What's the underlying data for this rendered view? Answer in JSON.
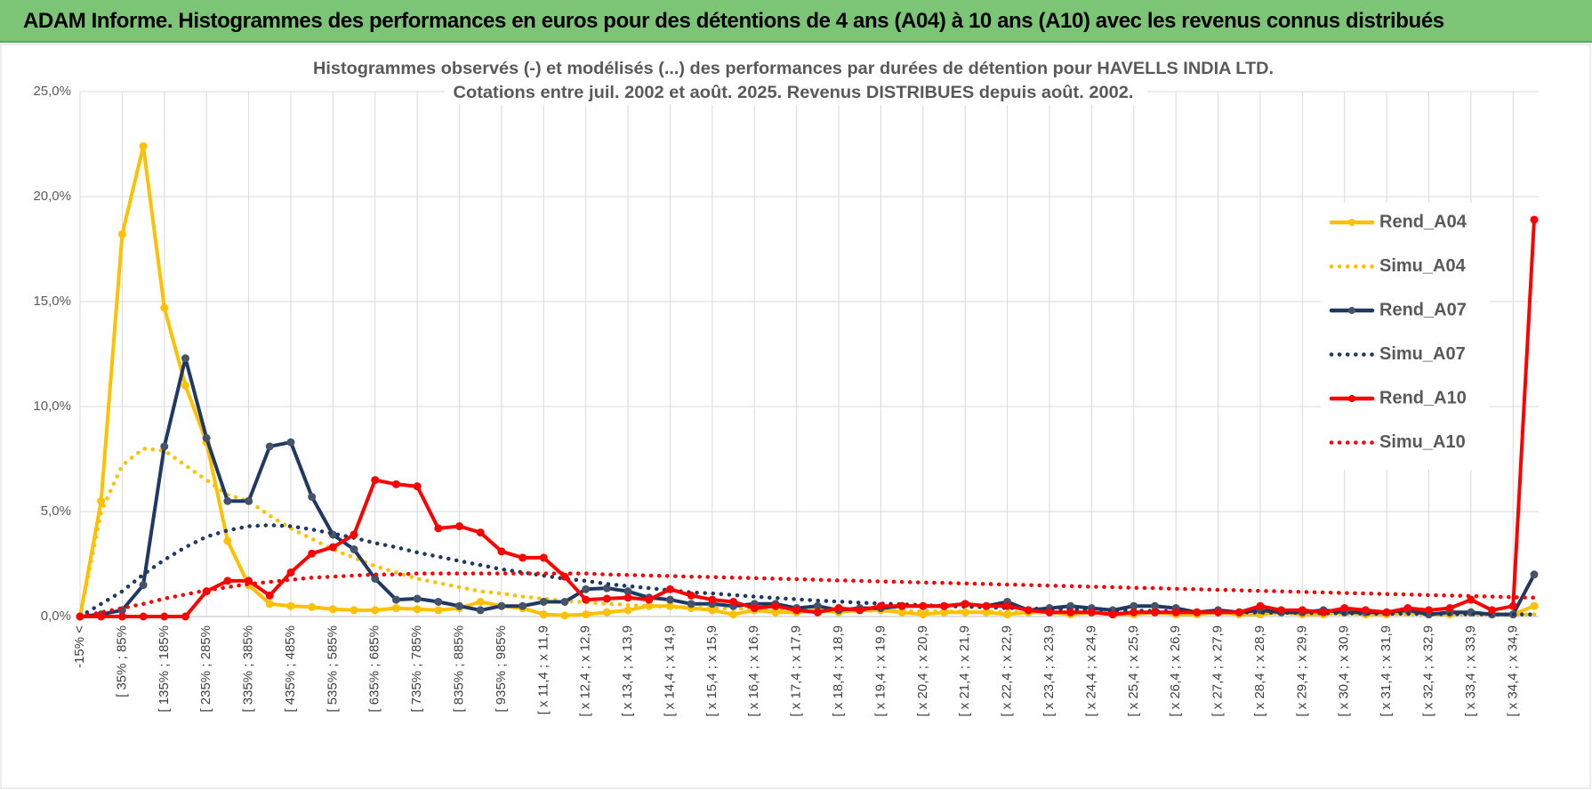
{
  "header": {
    "title": "ADAM Informe. Histogrammes des performances en euros pour des détentions de 4 ans (A04) à 10 ans (A10) avec les revenus connus distribués"
  },
  "chart_data": {
    "type": "line",
    "title": "Histogrammes observés (-) et modélisés (...) des performances par durées de détention pour HAVELLS INDIA LTD.",
    "subtitle": "Cotations entre juil. 2002 et août. 2025. Revenus DISTRIBUES depuis août. 2002.",
    "categories": [
      "-15% <",
      null,
      "[ 35% ; 85%",
      null,
      "[ 135% ; 185%",
      null,
      "[ 235% ; 285%",
      null,
      "[ 335% ; 385%",
      null,
      "[ 435% ; 485%",
      null,
      "[ 535% ; 585%",
      null,
      "[ 635% ; 685%",
      null,
      "[ 735% ; 785%",
      null,
      "[ 835% ; 885%",
      null,
      "[ 935% ; 985%",
      null,
      "[ x 11,4 ; x 11,9",
      null,
      "[ x 12,4 ; x 12,9",
      null,
      "[ x 13,4 ; x 13,9",
      null,
      "[ x 14,4 ; x 14,9",
      null,
      "[ x 15,4 ; x 15,9",
      null,
      "[ x 16,4 ; x 16,9",
      null,
      "[ x 17,4 ; x 17,9",
      null,
      "[ x 18,4 ; x 18,9",
      null,
      "[ x 19,4 ; x 19,9",
      null,
      "[ x 20,4 ; x 20,9",
      null,
      "[ x 21,4 ; x 21,9",
      null,
      "[ x 22,4 ; x 22,9",
      null,
      "[ x 23,4 ; x 23,9",
      null,
      "[ x 24,4 ; x 24,9",
      null,
      "[ x 25,4 ; x 25,9",
      null,
      "[ x 26,4 ; x 26,9",
      null,
      "[ x 27,4 ; x 27,9",
      null,
      "[ x 28,4 ; x 28,9",
      null,
      "[ x 29,4 ; x 29,9",
      null,
      "[ x 30,4 ; x 30,9",
      null,
      "[ x 31,4 ; x 31,9",
      null,
      "[ x 32,4 ; x 32,9",
      null,
      "[ x 33,4 ; x 33,9",
      null,
      "[ x 34,4 ; x 34,9",
      null
    ],
    "series": [
      {
        "name": "Rend_A04",
        "color": "#FFC000",
        "style": "solid",
        "markers": true,
        "marker_color": "#FFC000",
        "values": [
          0,
          5.5,
          18.2,
          22.4,
          14.7,
          11,
          8.3,
          3.6,
          1.5,
          0.6,
          0.5,
          0.45,
          0.35,
          0.3,
          0.3,
          0.4,
          0.35,
          0.3,
          0.4,
          0.7,
          0.5,
          0.4,
          0.1,
          0.05,
          0.1,
          0.2,
          0.3,
          0.5,
          0.5,
          0.4,
          0.3,
          0.1,
          0.3,
          0.2,
          0.2,
          0.3,
          0.2,
          0.3,
          0.3,
          0.2,
          0.1,
          0.2,
          0.2,
          0.2,
          0.1,
          0.2,
          0.2,
          0.1,
          0.2,
          0.1,
          0.1,
          0.2,
          0.1,
          0.1,
          0.2,
          0.1,
          0.1,
          0.2,
          0.1,
          0.1,
          0.2,
          0.1,
          0.1,
          0.2,
          0.1,
          0.1,
          0.2,
          0.1,
          0.1,
          0.5
        ]
      },
      {
        "name": "Simu_A04",
        "color": "#FFC000",
        "style": "dotted",
        "markers": false,
        "values": [
          0,
          5,
          7.2,
          8,
          7.9,
          7.2,
          6.5,
          5.8,
          5.5,
          4.8,
          4.2,
          3.7,
          3.2,
          2.8,
          2.4,
          2.1,
          1.8,
          1.6,
          1.4,
          1.2,
          1.1,
          0.95,
          0.85,
          0.75,
          0.68,
          0.6,
          0.55,
          0.5,
          0.45,
          0.42,
          0.4,
          0.38,
          0.36,
          0.34,
          0.32,
          0.3,
          0.29,
          0.28,
          0.27,
          0.26,
          0.25,
          0.24,
          0.23,
          0.22,
          0.21,
          0.2,
          0.2,
          0.19,
          0.18,
          0.18,
          0.17,
          0.17,
          0.16,
          0.16,
          0.15,
          0.15,
          0.14,
          0.14,
          0.13,
          0.13,
          0.13,
          0.12,
          0.12,
          0.12,
          0.11,
          0.11,
          0.11,
          0.1,
          0.1,
          0.1
        ]
      },
      {
        "name": "Rend_A07",
        "color": "#1F3864",
        "style": "solid",
        "markers": true,
        "marker_color": "#44546A",
        "values": [
          0,
          0.1,
          0.3,
          1.5,
          8.1,
          12.3,
          8.5,
          5.5,
          5.5,
          8.1,
          8.3,
          5.7,
          3.9,
          3.2,
          1.8,
          0.8,
          0.85,
          0.7,
          0.5,
          0.3,
          0.5,
          0.5,
          0.7,
          0.7,
          1.3,
          1.35,
          1.2,
          0.9,
          0.8,
          0.6,
          0.6,
          0.5,
          0.6,
          0.6,
          0.4,
          0.5,
          0.3,
          0.4,
          0.4,
          0.5,
          0.5,
          0.5,
          0.6,
          0.5,
          0.7,
          0.3,
          0.4,
          0.5,
          0.4,
          0.3,
          0.5,
          0.5,
          0.4,
          0.2,
          0.3,
          0.2,
          0.3,
          0.2,
          0.2,
          0.3,
          0.2,
          0.2,
          0.2,
          0.3,
          0.1,
          0.2,
          0.2,
          0.1,
          0.1,
          2.0
        ]
      },
      {
        "name": "Simu_A07",
        "color": "#1F3864",
        "style": "dotted",
        "markers": false,
        "values": [
          0,
          0.6,
          1.2,
          2,
          2.7,
          3.3,
          3.8,
          4.1,
          4.3,
          4.35,
          4.3,
          4.15,
          3.95,
          3.75,
          3.5,
          3.3,
          3.05,
          2.85,
          2.65,
          2.45,
          2.25,
          2.1,
          1.95,
          1.8,
          1.7,
          1.55,
          1.45,
          1.35,
          1.25,
          1.15,
          1.1,
          1.02,
          0.95,
          0.88,
          0.82,
          0.76,
          0.71,
          0.66,
          0.62,
          0.58,
          0.54,
          0.5,
          0.47,
          0.44,
          0.41,
          0.38,
          0.36,
          0.34,
          0.32,
          0.3,
          0.28,
          0.26,
          0.25,
          0.23,
          0.22,
          0.2,
          0.19,
          0.18,
          0.17,
          0.16,
          0.15,
          0.14,
          0.13,
          0.13,
          0.12,
          0.11,
          0.11,
          0.1,
          0.1,
          0.1
        ]
      },
      {
        "name": "Rend_A10",
        "color": "#FF0000",
        "style": "solid",
        "markers": true,
        "marker_color": "#FF0000",
        "values": [
          0,
          0,
          0,
          0,
          0,
          0,
          1.2,
          1.7,
          1.7,
          1.0,
          2.1,
          3.0,
          3.3,
          3.9,
          6.5,
          6.3,
          6.2,
          4.2,
          4.3,
          4.0,
          3.1,
          2.8,
          2.8,
          1.9,
          0.8,
          0.85,
          0.9,
          0.8,
          1.3,
          1.0,
          0.8,
          0.7,
          0.4,
          0.5,
          0.3,
          0.2,
          0.4,
          0.3,
          0.5,
          0.5,
          0.5,
          0.5,
          0.6,
          0.5,
          0.5,
          0.3,
          0.2,
          0.2,
          0.2,
          0.1,
          0.2,
          0.2,
          0.2,
          0.2,
          0.2,
          0.2,
          0.5,
          0.3,
          0.3,
          0.2,
          0.4,
          0.3,
          0.2,
          0.4,
          0.3,
          0.4,
          0.8,
          0.3,
          0.5,
          18.9
        ]
      },
      {
        "name": "Simu_A10",
        "color": "#FF0000",
        "style": "dotted",
        "markers": false,
        "values": [
          0,
          0.2,
          0.4,
          0.6,
          0.85,
          1.05,
          1.25,
          1.4,
          1.55,
          1.65,
          1.75,
          1.85,
          1.9,
          1.95,
          2,
          2,
          2.05,
          2.05,
          2.05,
          2.05,
          2.05,
          2.05,
          2.05,
          2.05,
          2.05,
          2,
          1.98,
          1.95,
          1.93,
          1.9,
          1.88,
          1.85,
          1.83,
          1.8,
          1.78,
          1.75,
          1.72,
          1.7,
          1.67,
          1.65,
          1.62,
          1.6,
          1.57,
          1.55,
          1.52,
          1.5,
          1.47,
          1.45,
          1.42,
          1.4,
          1.37,
          1.35,
          1.32,
          1.3,
          1.27,
          1.25,
          1.22,
          1.2,
          1.17,
          1.15,
          1.12,
          1.1,
          1.07,
          1.05,
          1.02,
          1,
          0.98,
          0.95,
          0.92,
          0.9
        ]
      }
    ],
    "ylim": [
      0,
      25
    ],
    "yticks": [
      {
        "value": 0,
        "label": "0,0%"
      },
      {
        "value": 5,
        "label": "5,0%"
      },
      {
        "value": 10,
        "label": "10,0%"
      },
      {
        "value": 15,
        "label": "15,0%"
      },
      {
        "value": 20,
        "label": "20,0%"
      },
      {
        "value": 25,
        "label": "25,0%"
      }
    ],
    "grid": true,
    "legend": "right"
  }
}
